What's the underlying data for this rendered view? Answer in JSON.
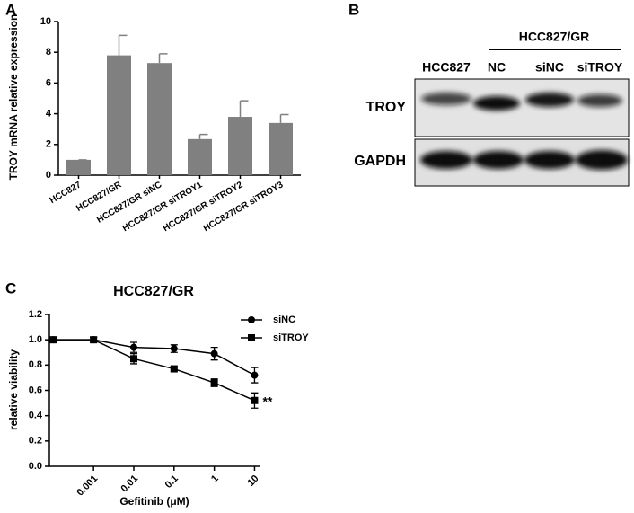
{
  "chart_data": [
    {
      "type": "bar",
      "panel_label": "A",
      "ylabel": "TROY mRNA relative expression",
      "categories": [
        "HCC827",
        "HCC827/GR",
        "HCC827/GR siNC",
        "HCC827/GR siTROY1",
        "HCC827/GR siTROY2",
        "HCC827/GR siTROY3"
      ],
      "values": [
        1.0,
        7.8,
        7.3,
        2.35,
        3.8,
        3.4
      ],
      "errors": [
        0,
        1.3,
        0.6,
        0.3,
        1.05,
        0.55
      ],
      "color": "#808080",
      "ylim": [
        0,
        10
      ],
      "yticks": [
        0,
        2,
        4,
        6,
        8,
        10
      ]
    },
    {
      "type": "blot",
      "panel_label": "B",
      "group_label": "HCC827/GR",
      "lanes": [
        "HCC827",
        "NC",
        "siNC",
        "siTROY"
      ],
      "rows": [
        "TROY",
        "GAPDH"
      ]
    },
    {
      "type": "line",
      "panel_label": "C",
      "title": "HCC827/GR",
      "xlabel": "Gefitinib (μM)",
      "ylabel": "relative viability",
      "x": [
        0.0001,
        0.001,
        0.01,
        0.1,
        1,
        10
      ],
      "xlog": true,
      "xlim": [
        8e-05,
        14
      ],
      "xticks": [
        0.001,
        0.01,
        0.1,
        1,
        10
      ],
      "ylim": [
        0,
        1.2
      ],
      "yticks": [
        {
          "value": 0,
          "label": "0.0"
        },
        0.2,
        0.4,
        0.6,
        0.8,
        {
          "value": 1,
          "label": "1.0"
        },
        1.2
      ],
      "legend": "upper right",
      "series": [
        {
          "name": "siNC",
          "color": "#000000",
          "marker": "circle",
          "values": [
            1.0,
            1.0,
            0.94,
            0.93,
            0.89,
            0.72
          ],
          "errors": [
            0.01,
            0.02,
            0.04,
            0.03,
            0.05,
            0.06
          ]
        },
        {
          "name": "siTROY",
          "color": "#000000",
          "marker": "square",
          "values": [
            1.0,
            1.0,
            0.85,
            0.77,
            0.66,
            0.52
          ],
          "errors": [
            0.01,
            0.02,
            0.04,
            0.02,
            0.03,
            0.06
          ]
        }
      ],
      "annotation": "**"
    }
  ]
}
